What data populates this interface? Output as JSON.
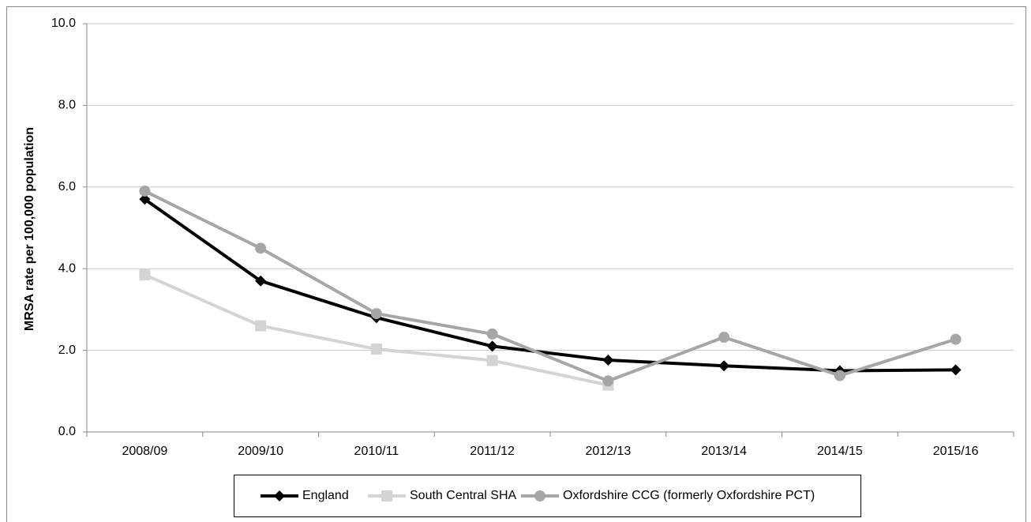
{
  "chart_data": {
    "type": "line",
    "y_label": "MRSA rate per 100,000 population",
    "categories": [
      "2008/09",
      "2009/10",
      "2010/11",
      "2011/12",
      "2012/13",
      "2013/14",
      "2014/15",
      "2015/16"
    ],
    "series": [
      {
        "name": "England",
        "color": "#000000",
        "marker": "diamond",
        "values": [
          5.7,
          3.7,
          2.8,
          2.1,
          1.76,
          1.62,
          1.5,
          1.52
        ]
      },
      {
        "name": "South Central SHA",
        "color": "#d4d4d4",
        "marker": "square",
        "values": [
          3.85,
          2.6,
          2.03,
          1.75,
          1.15,
          null,
          null,
          null
        ]
      },
      {
        "name": "Oxfordshire CCG (formerly Oxfordshire PCT)",
        "color": "#a6a6a6",
        "marker": "circle",
        "values": [
          5.9,
          4.5,
          2.9,
          2.4,
          1.25,
          2.32,
          1.38,
          2.27
        ]
      }
    ],
    "ylim": [
      0,
      10
    ],
    "yticks": [
      {
        "value": 0,
        "label": "0.0"
      },
      {
        "value": 2,
        "label": "2.0"
      },
      {
        "value": 4,
        "label": "4.0"
      },
      {
        "value": 6,
        "label": "6.0"
      },
      {
        "value": 8,
        "label": "8.0"
      },
      {
        "value": 10,
        "label": "10.0"
      }
    ],
    "grid": true,
    "legend": "bottom"
  }
}
